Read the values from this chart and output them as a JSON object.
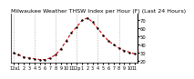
{
  "title": "Milwaukee Weather THSW Index per Hour (F) (Last 24 Hours)",
  "hours": [
    0,
    1,
    2,
    3,
    4,
    5,
    6,
    7,
    8,
    9,
    10,
    11,
    12,
    13,
    14,
    15,
    16,
    17,
    18,
    19,
    20,
    21,
    22,
    23
  ],
  "values": [
    30,
    28,
    25,
    24,
    23,
    22,
    22,
    24,
    28,
    35,
    45,
    55,
    62,
    70,
    73,
    68,
    60,
    52,
    45,
    40,
    36,
    33,
    31,
    29
  ],
  "line_color": "#cc0000",
  "marker_color": "#000000",
  "bg_color": "#ffffff",
  "grid_color": "#999999",
  "title_color": "#000000",
  "yticks": [
    70,
    60,
    50,
    40,
    30,
    20
  ],
  "ylim": [
    18,
    78
  ],
  "xlim": [
    -0.5,
    23.5
  ],
  "tick_labels": [
    "12a",
    "1",
    "2",
    "3",
    "4",
    "5",
    "6",
    "7",
    "8",
    "9",
    "10",
    "11",
    "12p",
    "1",
    "2",
    "3",
    "4",
    "5",
    "6",
    "7",
    "8",
    "9",
    "10",
    "11"
  ],
  "title_fontsize": 4.5,
  "axis_fontsize": 3.8,
  "line_width": 0.8,
  "marker_size": 1.5,
  "vgrid_positions": [
    0,
    4,
    8,
    12,
    16,
    20
  ]
}
